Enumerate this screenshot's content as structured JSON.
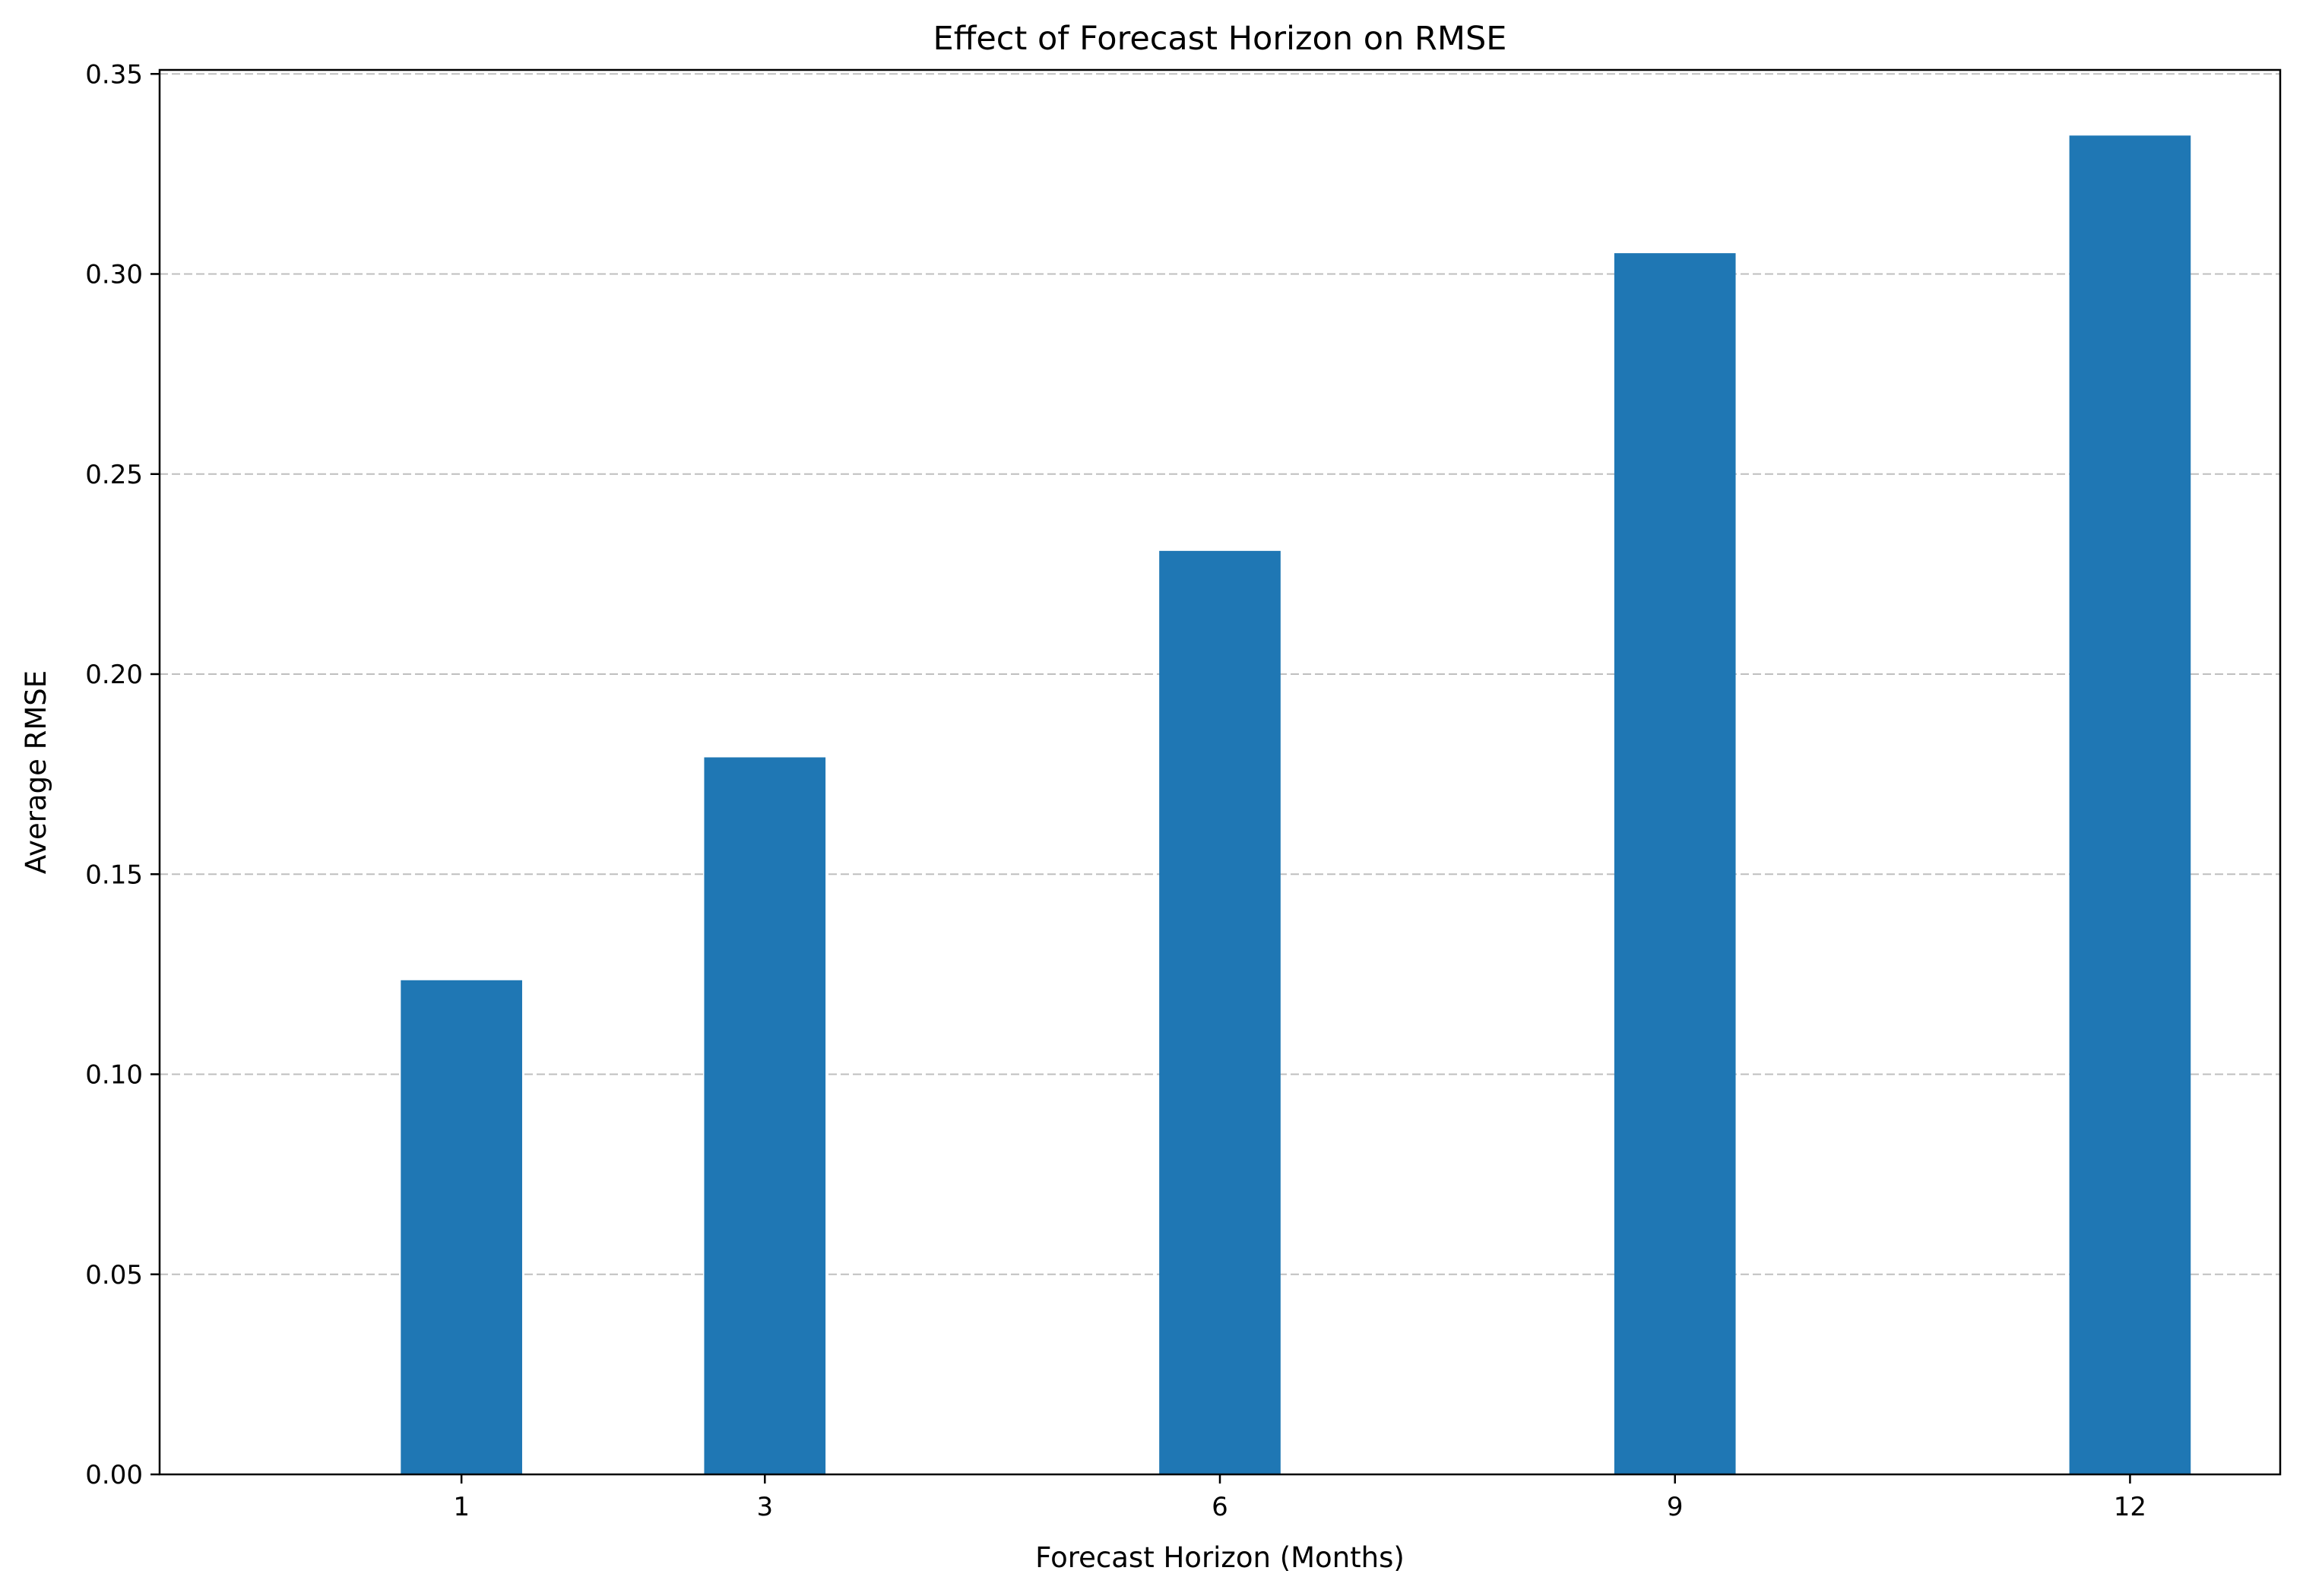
{
  "chart_data": {
    "type": "bar",
    "title": "Effect of Forecast Horizon on RMSE",
    "xlabel": "Forecast Horizon (Months)",
    "ylabel": "Average RMSE",
    "x": [
      1,
      3,
      6,
      9,
      12
    ],
    "x_tick_labels": [
      "1",
      "3",
      "6",
      "9",
      "12"
    ],
    "values": [
      0.1235,
      0.1792,
      0.2308,
      0.3052,
      0.3346
    ],
    "bar_width": 0.8,
    "xlim": [
      -0.99,
      12.99
    ],
    "ylim": [
      0,
      0.351
    ],
    "y_ticks": [
      0.0,
      0.05,
      0.1,
      0.15,
      0.2,
      0.25,
      0.3,
      0.35
    ],
    "y_tick_labels": [
      "0.00",
      "0.05",
      "0.10",
      "0.15",
      "0.20",
      "0.25",
      "0.30",
      "0.35"
    ],
    "grid": "y-dashed",
    "legend": "none",
    "bar_color": "#1f77b4"
  }
}
